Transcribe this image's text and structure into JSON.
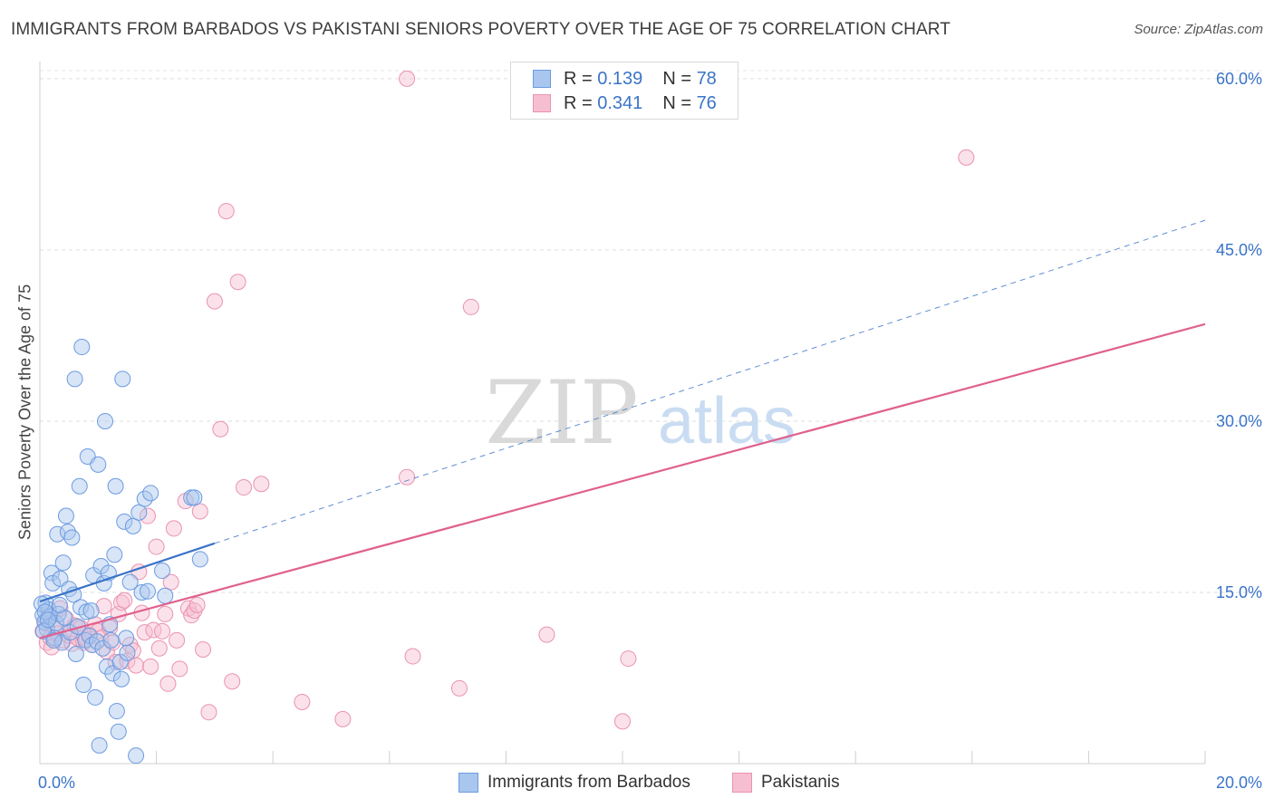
{
  "title": "IMMIGRANTS FROM BARBADOS VS PAKISTANI SENIORS POVERTY OVER THE AGE OF 75 CORRELATION CHART",
  "source": "Source: ZipAtlas.com",
  "watermark": {
    "zip": "ZIP",
    "atlas": "atlas"
  },
  "legend": {
    "r_label": "R =",
    "n_label": "N =",
    "series": [
      {
        "name": "Immigrants from Barbados",
        "r": "0.139",
        "n": "78"
      },
      {
        "name": "Pakistanis",
        "r": "0.341",
        "n": "76"
      }
    ]
  },
  "chart_data": {
    "type": "scatter",
    "title": "IMMIGRANTS FROM BARBADOS VS PAKISTANI SENIORS POVERTY OVER THE AGE OF 75 CORRELATION CHART",
    "xlabel": "",
    "ylabel": "Seniors Poverty Over the Age of 75",
    "xlim": [
      0,
      20
    ],
    "ylim": [
      0,
      61.5
    ],
    "x_tick_labels": [
      "0.0%",
      "20.0%"
    ],
    "y_ticks": [
      15,
      30,
      45,
      60
    ],
    "y_tick_labels": [
      "15.0%",
      "30.0%",
      "45.0%",
      "60.0%"
    ],
    "grid": true,
    "legend_position": "top-center",
    "colors": {
      "barbados_fill": "#a8c6ee",
      "barbados_stroke": "#6b9be0",
      "barbados_line": "#3a74c8",
      "pakistanis_fill": "#f6bfd1",
      "pakistanis_stroke": "#ea92b1",
      "pakistanis_line": "#e0608e",
      "tick_label": "#3a74c8"
    },
    "series": [
      {
        "name": "Immigrants from Barbados",
        "r": 0.139,
        "n": 78,
        "trend": {
          "x": [
            0,
            3.0
          ],
          "y": [
            14.2,
            19.3
          ]
        },
        "trend_extension": {
          "x": [
            3.0,
            20.0
          ],
          "y": [
            19.3,
            47.6
          ]
        },
        "points": [
          [
            0.05,
            13.0
          ],
          [
            0.08,
            12.4
          ],
          [
            0.1,
            14.1
          ],
          [
            0.12,
            11.8
          ],
          [
            0.15,
            13.5
          ],
          [
            0.18,
            12.9
          ],
          [
            0.2,
            16.7
          ],
          [
            0.22,
            15.8
          ],
          [
            0.25,
            11.0
          ],
          [
            0.28,
            12.3
          ],
          [
            0.3,
            20.1
          ],
          [
            0.32,
            13.1
          ],
          [
            0.35,
            16.2
          ],
          [
            0.38,
            10.6
          ],
          [
            0.4,
            17.6
          ],
          [
            0.42,
            12.8
          ],
          [
            0.45,
            21.7
          ],
          [
            0.48,
            20.3
          ],
          [
            0.5,
            15.3
          ],
          [
            0.52,
            11.5
          ],
          [
            0.55,
            19.8
          ],
          [
            0.58,
            14.8
          ],
          [
            0.6,
            33.7
          ],
          [
            0.62,
            9.6
          ],
          [
            0.65,
            12.0
          ],
          [
            0.68,
            24.3
          ],
          [
            0.7,
            13.7
          ],
          [
            0.72,
            36.5
          ],
          [
            0.75,
            6.9
          ],
          [
            0.78,
            10.8
          ],
          [
            0.8,
            13.3
          ],
          [
            0.82,
            26.9
          ],
          [
            0.85,
            11.2
          ],
          [
            0.88,
            13.4
          ],
          [
            0.9,
            10.4
          ],
          [
            0.92,
            16.5
          ],
          [
            0.95,
            5.8
          ],
          [
            0.98,
            10.7
          ],
          [
            1.0,
            26.2
          ],
          [
            1.02,
            1.6
          ],
          [
            1.05,
            17.3
          ],
          [
            1.08,
            10.1
          ],
          [
            1.1,
            15.8
          ],
          [
            1.12,
            30.0
          ],
          [
            1.15,
            8.5
          ],
          [
            1.18,
            16.7
          ],
          [
            1.2,
            12.2
          ],
          [
            1.22,
            10.8
          ],
          [
            1.25,
            7.9
          ],
          [
            1.28,
            18.3
          ],
          [
            1.3,
            24.3
          ],
          [
            1.32,
            4.6
          ],
          [
            1.35,
            2.8
          ],
          [
            1.38,
            8.9
          ],
          [
            1.4,
            7.4
          ],
          [
            1.42,
            33.7
          ],
          [
            1.45,
            21.2
          ],
          [
            1.48,
            11.0
          ],
          [
            1.5,
            9.7
          ],
          [
            1.55,
            15.9
          ],
          [
            1.6,
            20.8
          ],
          [
            1.65,
            0.7
          ],
          [
            1.7,
            22.0
          ],
          [
            1.75,
            15.0
          ],
          [
            1.8,
            23.2
          ],
          [
            1.85,
            15.1
          ],
          [
            1.9,
            23.7
          ],
          [
            2.1,
            16.9
          ],
          [
            2.15,
            14.7
          ],
          [
            2.6,
            23.3
          ],
          [
            2.65,
            23.3
          ],
          [
            2.75,
            17.9
          ],
          [
            0.03,
            14.0
          ],
          [
            0.06,
            11.6
          ],
          [
            0.09,
            13.3
          ],
          [
            0.14,
            12.6
          ],
          [
            0.24,
            10.8
          ],
          [
            0.34,
            13.9
          ]
        ]
      },
      {
        "name": "Pakistanis",
        "r": 0.341,
        "n": 76,
        "trend": {
          "x": [
            0,
            20.0
          ],
          "y": [
            11.0,
            38.5
          ]
        },
        "points": [
          [
            0.05,
            11.6
          ],
          [
            0.1,
            12.3
          ],
          [
            0.12,
            10.6
          ],
          [
            0.15,
            13.1
          ],
          [
            0.18,
            11.0
          ],
          [
            0.2,
            10.2
          ],
          [
            0.25,
            12.0
          ],
          [
            0.3,
            11.4
          ],
          [
            0.35,
            13.6
          ],
          [
            0.4,
            10.8
          ],
          [
            0.45,
            12.7
          ],
          [
            0.5,
            11.2
          ],
          [
            0.55,
            10.5
          ],
          [
            0.6,
            12.1
          ],
          [
            0.65,
            11.0
          ],
          [
            0.7,
            11.9
          ],
          [
            0.75,
            10.6
          ],
          [
            0.8,
            10.9
          ],
          [
            0.85,
            11.3
          ],
          [
            0.9,
            10.4
          ],
          [
            0.95,
            12.2
          ],
          [
            1.0,
            11.6
          ],
          [
            1.05,
            11.0
          ],
          [
            1.1,
            13.8
          ],
          [
            1.15,
            9.8
          ],
          [
            1.2,
            11.9
          ],
          [
            1.25,
            10.6
          ],
          [
            1.3,
            8.9
          ],
          [
            1.35,
            13.1
          ],
          [
            1.4,
            14.1
          ],
          [
            1.45,
            14.3
          ],
          [
            1.5,
            9.0
          ],
          [
            1.55,
            10.4
          ],
          [
            1.6,
            9.9
          ],
          [
            1.65,
            8.6
          ],
          [
            1.7,
            16.8
          ],
          [
            1.75,
            13.2
          ],
          [
            1.8,
            11.5
          ],
          [
            1.85,
            21.7
          ],
          [
            1.9,
            8.5
          ],
          [
            1.95,
            11.7
          ],
          [
            2.0,
            19.0
          ],
          [
            2.05,
            10.1
          ],
          [
            2.1,
            11.6
          ],
          [
            2.15,
            13.1
          ],
          [
            2.2,
            7.0
          ],
          [
            2.25,
            15.9
          ],
          [
            2.3,
            20.6
          ],
          [
            2.35,
            10.8
          ],
          [
            2.4,
            8.3
          ],
          [
            2.5,
            23.0
          ],
          [
            2.55,
            13.6
          ],
          [
            2.6,
            13.0
          ],
          [
            2.65,
            13.4
          ],
          [
            2.7,
            13.9
          ],
          [
            2.75,
            22.1
          ],
          [
            2.8,
            10.0
          ],
          [
            2.9,
            4.5
          ],
          [
            3.0,
            40.5
          ],
          [
            3.1,
            29.3
          ],
          [
            3.2,
            48.4
          ],
          [
            3.3,
            7.2
          ],
          [
            3.4,
            42.2
          ],
          [
            3.5,
            24.2
          ],
          [
            3.8,
            24.5
          ],
          [
            4.5,
            5.4
          ],
          [
            5.2,
            3.9
          ],
          [
            6.3,
            60.0
          ],
          [
            6.3,
            25.1
          ],
          [
            6.4,
            9.4
          ],
          [
            7.4,
            40.0
          ],
          [
            8.7,
            11.3
          ],
          [
            10.0,
            3.7
          ],
          [
            10.1,
            9.2
          ],
          [
            15.9,
            53.1
          ],
          [
            7.2,
            6.6
          ]
        ]
      }
    ]
  }
}
